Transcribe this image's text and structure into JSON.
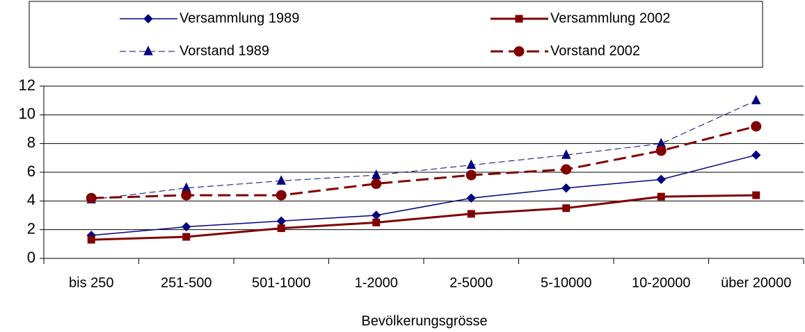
{
  "chart_data": {
    "type": "line",
    "x_label": "Bevölkerungsgrösse",
    "categories": [
      "bis 250",
      "251-500",
      "501-1000",
      "1-2000",
      "2-5000",
      "5-10000",
      "10-20000",
      "über 20000"
    ],
    "series": [
      {
        "name": "Versammlung 1989",
        "color": "#000080",
        "marker": "diamond",
        "dashed": false,
        "line_width": 1.5,
        "values": [
          1.6,
          2.2,
          2.6,
          3.0,
          4.2,
          4.9,
          5.5,
          7.2
        ]
      },
      {
        "name": "Versammlung 2002",
        "color": "#800000",
        "marker": "square",
        "dashed": false,
        "line_width": 3,
        "values": [
          1.3,
          1.5,
          2.1,
          2.5,
          3.1,
          3.5,
          4.3,
          4.4
        ]
      },
      {
        "name": "Vorstand 1989",
        "color": "#000080",
        "marker": "triangle",
        "dashed": true,
        "line_width": 1,
        "values": [
          4.1,
          4.9,
          5.4,
          5.8,
          6.5,
          7.2,
          8.0,
          11.0
        ]
      },
      {
        "name": "Vorstand 2002",
        "color": "#800000",
        "marker": "circle",
        "dashed": true,
        "line_width": 3,
        "values": [
          4.2,
          4.4,
          4.4,
          5.2,
          5.8,
          6.2,
          7.5,
          9.2
        ]
      }
    ],
    "ylim": [
      0,
      12
    ],
    "yticks": [
      0,
      2,
      4,
      6,
      8,
      10,
      12
    ],
    "grid": true,
    "legend": "top"
  }
}
